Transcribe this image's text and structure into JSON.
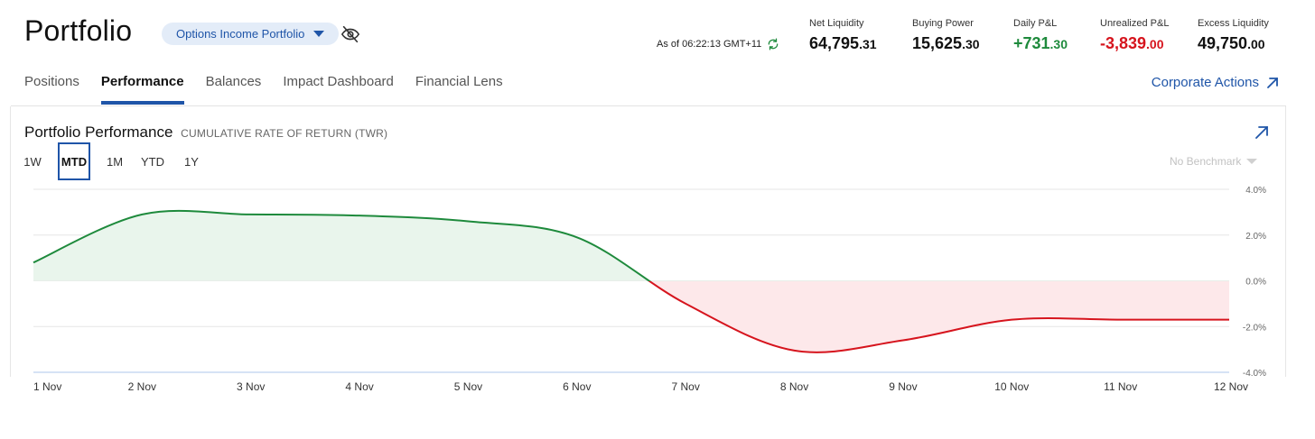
{
  "header": {
    "title": "Portfolio",
    "account_selector": "Options Income Portfolio",
    "as_of": "As of 06:22:13 GMT+11"
  },
  "metrics": [
    {
      "label": "Net Liquidity",
      "int": "64,795",
      "dec": ".31",
      "tone": "neutral"
    },
    {
      "label": "Buying Power",
      "int": "15,625",
      "dec": ".30",
      "tone": "neutral"
    },
    {
      "label": "Daily P&L",
      "int": "+731",
      "dec": ".30",
      "tone": "pos"
    },
    {
      "label": "Unrealized P&L",
      "int": "-3,839",
      "dec": ".00",
      "tone": "neg"
    },
    {
      "label": "Excess Liquidity",
      "int": "49,750",
      "dec": ".00",
      "tone": "neutral"
    }
  ],
  "tabs": [
    "Positions",
    "Performance",
    "Balances",
    "Impact Dashboard",
    "Financial Lens"
  ],
  "active_tab": "Performance",
  "corporate_actions": "Corporate Actions",
  "performance": {
    "title": "Portfolio Performance",
    "subtitle": "CUMULATIVE RATE OF RETURN (TWR)",
    "ranges": [
      "1W",
      "MTD",
      "1M",
      "YTD",
      "1Y"
    ],
    "active_range": "MTD",
    "benchmark": "No Benchmark"
  },
  "colors": {
    "accent": "#1f55a8",
    "positive": "#1e8a3c",
    "negative": "#d6141d",
    "positive_fill": "#e9f5ec",
    "negative_fill": "#fde8ea"
  },
  "chart_data": {
    "type": "area",
    "x": [
      "1 Nov",
      "2 Nov",
      "3 Nov",
      "4 Nov",
      "5 Nov",
      "6 Nov",
      "7 Nov",
      "8 Nov",
      "9 Nov",
      "10 Nov",
      "11 Nov",
      "12 Nov"
    ],
    "series": [
      {
        "values": [
          0.8,
          2.9,
          2.9,
          2.85,
          2.6,
          1.9,
          -1.0,
          -3.05,
          -2.6,
          -1.7,
          -1.7,
          -1.7
        ]
      }
    ],
    "y_tick_labels": [
      "4.0%",
      "2.0%",
      "0.0%",
      "-2.0%",
      "-4.0%"
    ],
    "ylim": [
      -4,
      4
    ],
    "y_axis_side": "right",
    "grid": true
  }
}
